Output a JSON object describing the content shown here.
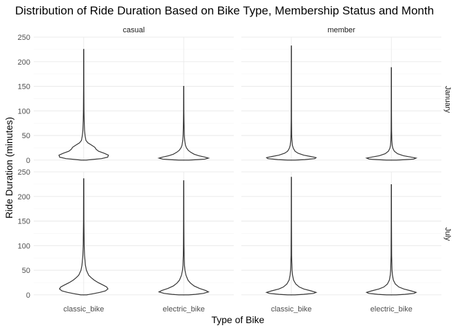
{
  "chart_data": {
    "type": "violin",
    "title": "Distribution of Ride Duration Based on Bike Type, Membership Status and Month",
    "xlabel": "Type of Bike",
    "ylabel": "Ride Duration (minutes)",
    "categories": [
      "classic_bike",
      "electric_bike"
    ],
    "facet_columns": [
      "casual",
      "member"
    ],
    "facet_rows": [
      "January",
      "July"
    ],
    "y_ticks": [
      0,
      50,
      100,
      150,
      200,
      250
    ],
    "ylim": [
      -3,
      250
    ],
    "grid": true,
    "panels": [
      {
        "column": "casual",
        "row": "January",
        "violins": [
          {
            "category": "classic_bike",
            "max": 225,
            "profile": [
              [
                0,
                0.1
              ],
              [
                1,
                0.3
              ],
              [
                3,
                0.72
              ],
              [
                6,
                0.97
              ],
              [
                10,
                1.0
              ],
              [
                14,
                0.82
              ],
              [
                18,
                0.6
              ],
              [
                22,
                0.5
              ],
              [
                26,
                0.45
              ],
              [
                30,
                0.33
              ],
              [
                35,
                0.17
              ],
              [
                40,
                0.09
              ],
              [
                50,
                0.055
              ],
              [
                60,
                0.035
              ],
              [
                80,
                0.02
              ],
              [
                100,
                0.012
              ],
              [
                150,
                0.006
              ],
              [
                225,
                0.004
              ]
            ]
          },
          {
            "category": "electric_bike",
            "max": 150,
            "profile": [
              [
                0,
                0.2
              ],
              [
                1,
                0.58
              ],
              [
                2,
                0.85
              ],
              [
                4,
                1.0
              ],
              [
                6,
                0.86
              ],
              [
                9,
                0.6
              ],
              [
                12,
                0.42
              ],
              [
                16,
                0.28
              ],
              [
                20,
                0.18
              ],
              [
                25,
                0.11
              ],
              [
                30,
                0.07
              ],
              [
                40,
                0.04
              ],
              [
                50,
                0.025
              ],
              [
                65,
                0.018
              ],
              [
                80,
                0.012
              ],
              [
                100,
                0.007
              ],
              [
                150,
                0.004
              ]
            ]
          }
        ]
      },
      {
        "column": "member",
        "row": "January",
        "violins": [
          {
            "category": "classic_bike",
            "max": 232,
            "profile": [
              [
                0,
                0.15
              ],
              [
                1,
                0.55
              ],
              [
                3,
                0.95
              ],
              [
                5,
                1.0
              ],
              [
                7,
                0.82
              ],
              [
                10,
                0.5
              ],
              [
                14,
                0.27
              ],
              [
                18,
                0.15
              ],
              [
                24,
                0.08
              ],
              [
                30,
                0.045
              ],
              [
                40,
                0.025
              ],
              [
                50,
                0.015
              ],
              [
                80,
                0.008
              ],
              [
                150,
                0.005
              ],
              [
                232,
                0.004
              ]
            ]
          },
          {
            "category": "electric_bike",
            "max": 188,
            "profile": [
              [
                0,
                0.2
              ],
              [
                1,
                0.6
              ],
              [
                2,
                0.9
              ],
              [
                4,
                1.0
              ],
              [
                6,
                0.8
              ],
              [
                9,
                0.48
              ],
              [
                13,
                0.25
              ],
              [
                18,
                0.12
              ],
              [
                24,
                0.06
              ],
              [
                30,
                0.035
              ],
              [
                40,
                0.02
              ],
              [
                60,
                0.01
              ],
              [
                100,
                0.006
              ],
              [
                188,
                0.004
              ]
            ]
          }
        ]
      },
      {
        "column": "casual",
        "row": "July",
        "violins": [
          {
            "category": "classic_bike",
            "max": 236,
            "profile": [
              [
                0,
                0.12
              ],
              [
                2,
                0.35
              ],
              [
                5,
                0.65
              ],
              [
                8,
                0.88
              ],
              [
                12,
                0.98
              ],
              [
                16,
                0.93
              ],
              [
                20,
                0.78
              ],
              [
                25,
                0.58
              ],
              [
                30,
                0.42
              ],
              [
                35,
                0.3
              ],
              [
                40,
                0.2
              ],
              [
                50,
                0.11
              ],
              [
                60,
                0.07
              ],
              [
                80,
                0.035
              ],
              [
                100,
                0.02
              ],
              [
                150,
                0.009
              ],
              [
                236,
                0.005
              ]
            ]
          },
          {
            "category": "electric_bike",
            "max": 232,
            "profile": [
              [
                0,
                0.2
              ],
              [
                1,
                0.48
              ],
              [
                3,
                0.8
              ],
              [
                6,
                1.0
              ],
              [
                9,
                0.88
              ],
              [
                13,
                0.64
              ],
              [
                18,
                0.42
              ],
              [
                24,
                0.27
              ],
              [
                30,
                0.17
              ],
              [
                40,
                0.09
              ],
              [
                50,
                0.05
              ],
              [
                60,
                0.03
              ],
              [
                80,
                0.018
              ],
              [
                100,
                0.012
              ],
              [
                150,
                0.007
              ],
              [
                232,
                0.004
              ]
            ]
          }
        ]
      },
      {
        "column": "member",
        "row": "July",
        "violins": [
          {
            "category": "classic_bike",
            "max": 239,
            "profile": [
              [
                0,
                0.15
              ],
              [
                1,
                0.5
              ],
              [
                3,
                0.9
              ],
              [
                5,
                1.0
              ],
              [
                8,
                0.8
              ],
              [
                12,
                0.5
              ],
              [
                16,
                0.32
              ],
              [
                22,
                0.18
              ],
              [
                30,
                0.09
              ],
              [
                40,
                0.05
              ],
              [
                50,
                0.03
              ],
              [
                80,
                0.012
              ],
              [
                150,
                0.006
              ],
              [
                239,
                0.004
              ]
            ]
          },
          {
            "category": "electric_bike",
            "max": 224,
            "profile": [
              [
                0,
                0.2
              ],
              [
                1,
                0.55
              ],
              [
                3,
                0.92
              ],
              [
                5,
                1.0
              ],
              [
                8,
                0.8
              ],
              [
                12,
                0.5
              ],
              [
                16,
                0.3
              ],
              [
                22,
                0.16
              ],
              [
                30,
                0.08
              ],
              [
                40,
                0.045
              ],
              [
                50,
                0.028
              ],
              [
                80,
                0.012
              ],
              [
                150,
                0.006
              ],
              [
                224,
                0.004
              ]
            ]
          }
        ]
      }
    ]
  }
}
